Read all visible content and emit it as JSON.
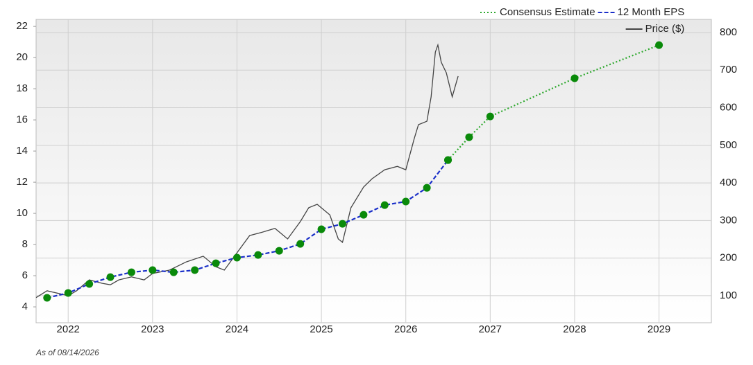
{
  "chart_data": {
    "type": "line",
    "footnote": "As of 08/14/2026",
    "xlim": [
      2021.62,
      2029.62
    ],
    "xticks": [
      2022,
      2023,
      2024,
      2025,
      2026,
      2027,
      2028,
      2029
    ],
    "ylim": [
      2.98,
      22.45
    ],
    "yticks": [
      4,
      6,
      8,
      10,
      12,
      14,
      16,
      18,
      20,
      22
    ],
    "y2lim": [
      28,
      835
    ],
    "y2ticks": [
      100,
      200,
      300,
      400,
      500,
      600,
      700,
      800
    ],
    "grid": true,
    "legend": "top-right",
    "series": [
      {
        "name": "Consensus Estimate",
        "color": "#2ca82c",
        "marker_color": "#0a8a0a",
        "style": "dotted",
        "x": [
          2026.5,
          2026.75,
          2027,
          2028,
          2029
        ],
        "values": [
          13.42,
          14.89,
          16.22,
          18.67,
          20.8
        ]
      },
      {
        "name": "12 Month EPS",
        "color": "#1a2fc9",
        "marker_color": "#0a8a0a",
        "style": "dashed",
        "x": [
          2021.75,
          2022,
          2022.25,
          2022.5,
          2022.75,
          2023,
          2023.25,
          2023.5,
          2023.75,
          2024,
          2024.25,
          2024.5,
          2024.75,
          2025,
          2025.25,
          2025.5,
          2025.75,
          2026,
          2026.25,
          2026.5
        ],
        "values": [
          4.58,
          4.89,
          5.47,
          5.91,
          6.22,
          6.36,
          6.22,
          6.36,
          6.8,
          7.16,
          7.33,
          7.6,
          8.04,
          8.98,
          9.33,
          9.91,
          10.53,
          10.76,
          11.64,
          13.42
        ]
      },
      {
        "name": "Price ($)",
        "color": "#444444",
        "style": "solid",
        "axis": "y2",
        "x": [
          2021.62,
          2021.75,
          2022.0,
          2022.1,
          2022.25,
          2022.4,
          2022.5,
          2022.6,
          2022.75,
          2022.9,
          2023.0,
          2023.2,
          2023.4,
          2023.6,
          2023.75,
          2023.85,
          2024.0,
          2024.15,
          2024.3,
          2024.45,
          2024.6,
          2024.75,
          2024.85,
          2024.95,
          2025.1,
          2025.2,
          2025.25,
          2025.35,
          2025.5,
          2025.6,
          2025.75,
          2025.9,
          2026.0,
          2026.1,
          2026.15,
          2026.25,
          2026.3,
          2026.35,
          2026.38,
          2026.42,
          2026.48,
          2026.55,
          2026.62
        ],
        "values": [
          95,
          113,
          100,
          113,
          142,
          133,
          129,
          142,
          150,
          142,
          159,
          168,
          190,
          205,
          177,
          168,
          214,
          260,
          269,
          279,
          251,
          297,
          334,
          343,
          315,
          251,
          242,
          334,
          389,
          411,
          435,
          444,
          435,
          518,
          555,
          564,
          629,
          748,
          767,
          721,
          693,
          629,
          684
        ]
      }
    ]
  }
}
